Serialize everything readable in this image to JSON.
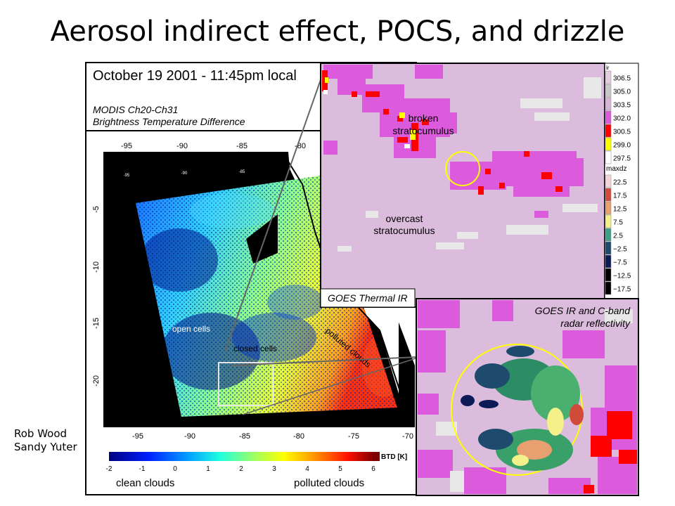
{
  "slide_title": "Aerosol indirect effect, POCS, and drizzle",
  "authors": [
    "Rob Wood",
    "Sandy Yuter"
  ],
  "modis_panel": {
    "date_label": "October 19 2001 - 11:45pm local",
    "product_line1": "MODIS Ch20-Ch31",
    "product_line2": "Brightness Temperature Difference",
    "top_lon_ticks": [
      "-95",
      "-90",
      "-85",
      "-80"
    ],
    "small_lon_ticks": [
      "-95",
      "-90",
      "-85"
    ],
    "bottom_lon_ticks": [
      "-95",
      "-90",
      "-85",
      "-80",
      "-75",
      "-70"
    ],
    "lat_ticks": [
      "-5",
      "-10",
      "-15",
      "-20"
    ],
    "open_cells_label": "open cells",
    "closed_cells_label": "closed cells",
    "polluted_label": "polluted clouds",
    "colorbar_ticks": [
      "-2",
      "-1",
      "0",
      "1",
      "2",
      "3",
      "4",
      "5",
      "6"
    ],
    "colorbar_unit": "BTD [K]",
    "colorbar_left_label": "clean clouds",
    "colorbar_right_label": "polluted clouds"
  },
  "goes_ir_panel": {
    "label": "GOES Thermal IR",
    "broken_label_1": "broken",
    "broken_label_2": "stratocumulus",
    "overcast_label_1": "overcast",
    "overcast_label_2": "stratocumulus",
    "ir_legend_title": "ir",
    "ir_legend": [
      {
        "value": "306.5",
        "color": "#e2cde2"
      },
      {
        "value": "305.0",
        "color": "#c8c8c8"
      },
      {
        "value": "303.5",
        "color": "#d6b6d6"
      },
      {
        "value": "302.0",
        "color": "#dc5adc"
      },
      {
        "value": "300.5",
        "color": "#ff0000"
      },
      {
        "value": "299.0",
        "color": "#ffff00"
      },
      {
        "value": "297.5",
        "color": "#ffffff"
      }
    ],
    "dz_legend_title": "maxdz",
    "dz_legend": [
      {
        "value": "22.5",
        "color": "#f2d6d6"
      },
      {
        "value": "17.5",
        "color": "#d24a3a"
      },
      {
        "value": "12.5",
        "color": "#e9a070"
      },
      {
        "value": "7.5",
        "color": "#f4f08a"
      },
      {
        "value": "2.5",
        "color": "#3fa089"
      },
      {
        "value": "−2.5",
        "color": "#1e4a6e"
      },
      {
        "value": "−7.5",
        "color": "#0c1a55"
      },
      {
        "value": "−12.5",
        "color": "#000000"
      },
      {
        "value": "−17.5",
        "color": "#000000"
      }
    ]
  },
  "radar_panel": {
    "label_line1": "GOES IR and C-band",
    "label_line2": "radar reflectivity"
  },
  "colors": {
    "ocean_mask": "#000000",
    "ir_background": "#dcbcdc",
    "ir_magenta": "#dc5adc",
    "ring": "#ffff00"
  }
}
